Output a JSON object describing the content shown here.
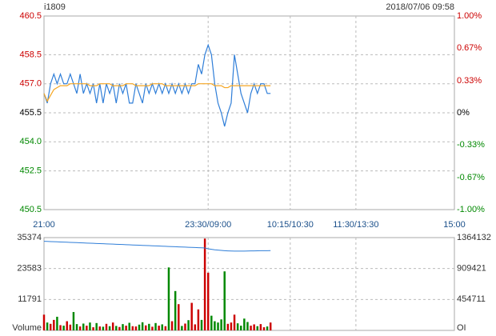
{
  "header": {
    "symbol": "i1809",
    "datetime": "2018/07/06 09:58"
  },
  "chart_data": [
    {
      "type": "line",
      "x": [
        0,
        3,
        6,
        9,
        12,
        15,
        18,
        21,
        24,
        27,
        30,
        33,
        36,
        39,
        42,
        45,
        48,
        51,
        54,
        57,
        60,
        63,
        66,
        69,
        72,
        75,
        78,
        81,
        84,
        87,
        90,
        93,
        96,
        99,
        102,
        105,
        108,
        111,
        114,
        117,
        120,
        123,
        126,
        129,
        132,
        135,
        138,
        141,
        144,
        147,
        150,
        153,
        156,
        159,
        162,
        165,
        168,
        171,
        174,
        177,
        180,
        183,
        186,
        189,
        192,
        195,
        198,
        201,
        204,
        207
      ],
      "xlim": [
        0,
        375
      ],
      "xticks": [
        {
          "value": 0,
          "label": "21:00"
        },
        {
          "value": 150,
          "label": "23:30/09:00"
        },
        {
          "value": 225,
          "label": "10:15/10:30"
        },
        {
          "value": 285,
          "label": "11:30/13:30"
        },
        {
          "value": 375,
          "label": "15:00"
        }
      ],
      "ylim": [
        450.5,
        460.5
      ],
      "yticks": [
        460.5,
        458.5,
        {
          "value": 457,
          "label": "457.0"
        },
        455.5,
        {
          "value": 454,
          "label": "454.0"
        },
        452.5,
        450.5
      ],
      "y2lim": [
        -1,
        1
      ],
      "y2ticks": [
        {
          "value": 1,
          "label": "1.00%"
        },
        {
          "value": 0.67,
          "label": "0.67%"
        },
        {
          "value": 0.33,
          "label": "0.33%"
        },
        {
          "value": 0,
          "label": "0%"
        },
        {
          "value": -0.33,
          "label": "-0.33%"
        },
        {
          "value": -0.67,
          "label": "-0.67%"
        },
        {
          "value": -1,
          "label": "-1.00%"
        }
      ],
      "up_color": "#cc0000",
      "down_color": "#008800",
      "grid": true,
      "series": [
        {
          "color": "#2f7ed8",
          "values": [
            456.5,
            456.0,
            457.0,
            457.5,
            457.0,
            457.5,
            457.0,
            457.0,
            457.5,
            457.0,
            456.5,
            457.5,
            456.5,
            457.0,
            456.5,
            457.0,
            456.0,
            457.0,
            456.0,
            457.0,
            456.5,
            457.0,
            456.0,
            457.0,
            456.5,
            457.0,
            456.0,
            456.0,
            457.0,
            456.5,
            456.0,
            457.0,
            456.5,
            457.0,
            456.5,
            457.0,
            456.5,
            457.0,
            456.5,
            457.0,
            456.5,
            457.0,
            456.5,
            457.0,
            456.5,
            457.0,
            457.0,
            458.0,
            457.5,
            458.5,
            459.0,
            458.5,
            457.0,
            456.0,
            455.5,
            454.8,
            455.5,
            456.0,
            458.5,
            457.5,
            456.5,
            456.0,
            455.5,
            456.5,
            457.0,
            456.5,
            457.0,
            457.0,
            456.5,
            456.5
          ]
        },
        {
          "color": "#f5a623",
          "values": [
            456.5,
            456.1,
            456.4,
            456.7,
            456.8,
            456.9,
            456.9,
            456.9,
            457.0,
            457.0,
            457.0,
            457.0,
            457.0,
            457.0,
            456.9,
            456.9,
            456.9,
            457.0,
            457.0,
            457.0,
            457.0,
            456.9,
            456.9,
            456.9,
            456.9,
            457.0,
            457.0,
            457.0,
            456.9,
            456.9,
            456.9,
            456.9,
            456.9,
            457.0,
            457.0,
            457.0,
            457.0,
            456.9,
            456.9,
            456.9,
            456.9,
            456.9,
            456.9,
            456.9,
            456.9,
            456.9,
            456.9,
            457.0,
            457.0,
            457.0,
            457.0,
            457.0,
            456.9,
            456.9,
            456.9,
            456.8,
            456.8,
            456.9,
            456.9,
            456.9,
            456.9,
            456.9,
            456.9,
            456.9,
            456.9,
            456.9,
            456.9,
            456.9,
            456.9,
            456.9
          ]
        }
      ]
    },
    {
      "type": "bar",
      "y_label": "Volume",
      "y2_label": "OI",
      "ylim": [
        0,
        35374
      ],
      "yticks": [
        35374,
        23583,
        11791
      ],
      "y2lim": [
        0,
        1364132
      ],
      "y2ticks": [
        1364132,
        909421,
        454711
      ],
      "up_color": "#cc0000",
      "down_color": "#008800",
      "series": [
        {
          "values": [
            6000,
            3000,
            2500,
            4000,
            5200,
            2000,
            1800,
            3500,
            2200,
            7000,
            2400,
            1500,
            2600,
            1800,
            3000,
            1200,
            2800,
            1500,
            1400,
            2500,
            1600,
            3000,
            1700,
            1300,
            2400,
            1800,
            2900,
            1600,
            1500,
            2200,
            3100,
            1900,
            2500,
            1400,
            2800,
            1800,
            2300,
            1600,
            24000,
            3500,
            15000,
            10000,
            1700,
            2600,
            3900,
            10500,
            2300,
            8000,
            4000,
            35000,
            22000,
            5600,
            3500,
            3000,
            4200,
            22500,
            2500,
            3000,
            6000,
            2700,
            1800,
            4500,
            3200,
            1800,
            2300,
            1600,
            2400,
            1200,
            1500,
            3000
          ]
        },
        {
          "axis": "y2",
          "color": "#2f7ed8",
          "values": [
            1310000,
            1308000,
            1306000,
            1304000,
            1302000,
            1300000,
            1298000,
            1296000,
            1294000,
            1292000,
            1290000,
            1288000,
            1286000,
            1284000,
            1282000,
            1280000,
            1278000,
            1276000,
            1274000,
            1272000,
            1270000,
            1268000,
            1266000,
            1264000,
            1262000,
            1260000,
            1258000,
            1256000,
            1254000,
            1252000,
            1250000,
            1248000,
            1246000,
            1244000,
            1242000,
            1240000,
            1238000,
            1236000,
            1234000,
            1232000,
            1230000,
            1228000,
            1226000,
            1224000,
            1222000,
            1220000,
            1218000,
            1216000,
            1214000,
            1212000,
            1200000,
            1192000,
            1185000,
            1180000,
            1176000,
            1172000,
            1169000,
            1167000,
            1166000,
            1165000,
            1165000,
            1166000,
            1167000,
            1168000,
            1169000,
            1170000,
            1171000,
            1172000,
            1172000,
            1173000
          ]
        }
      ]
    }
  ]
}
